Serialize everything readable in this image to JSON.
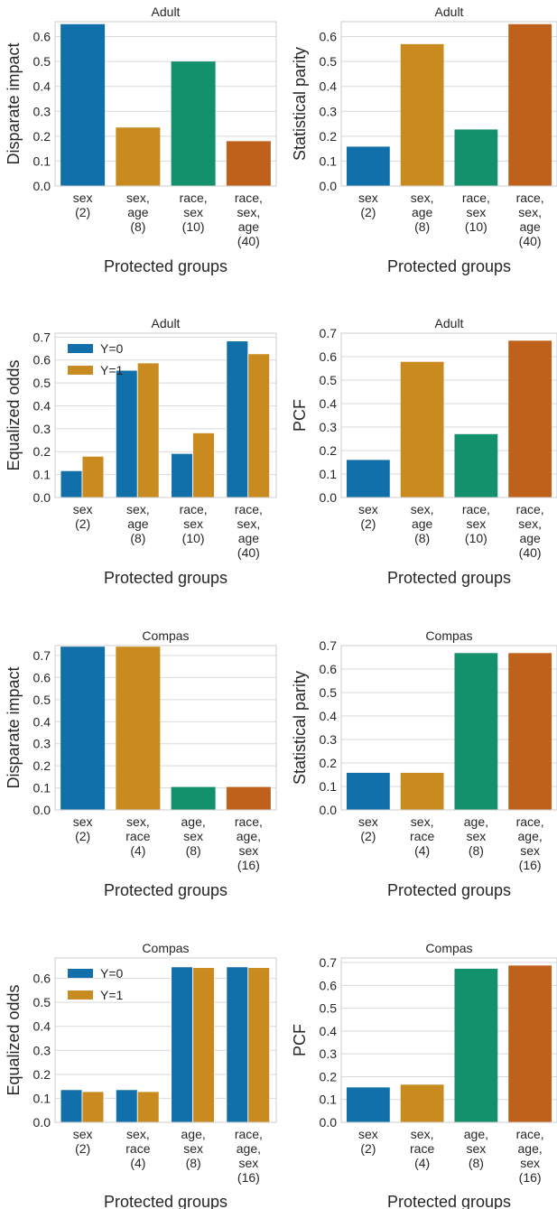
{
  "colors": {
    "blue": "#1170aa",
    "orange": "#c98b1f",
    "green": "#13906c",
    "red": "#c0611b",
    "grid": "#d9d9d9",
    "spine": "#cccccc",
    "text": "#262626"
  },
  "chart_data": [
    {
      "type": "bar",
      "title": "Adult",
      "xlabel": "Protected groups",
      "ylabel": "Disparate impact",
      "categories": [
        [
          "sex",
          "(2)"
        ],
        [
          "sex,",
          "age",
          "(8)"
        ],
        [
          "race,",
          "sex",
          "(10)"
        ],
        [
          "race,",
          "sex,",
          "age",
          "(40)"
        ]
      ],
      "values": [
        0.65,
        0.235,
        0.5,
        0.18
      ],
      "ylim": [
        0,
        0.66
      ],
      "yticks": [
        "0.0",
        "0.1",
        "0.2",
        "0.3",
        "0.4",
        "0.5",
        "0.6"
      ],
      "grid": true
    },
    {
      "type": "bar",
      "title": "Adult",
      "xlabel": "Protected groups",
      "ylabel": "Statistical parity",
      "categories": [
        [
          "sex",
          "(2)"
        ],
        [
          "sex,",
          "age",
          "(8)"
        ],
        [
          "race,",
          "sex",
          "(10)"
        ],
        [
          "race,",
          "sex,",
          "age",
          "(40)"
        ]
      ],
      "values": [
        0.158,
        0.57,
        0.227,
        0.65
      ],
      "ylim": [
        0,
        0.66
      ],
      "yticks": [
        "0.0",
        "0.1",
        "0.2",
        "0.3",
        "0.4",
        "0.5",
        "0.6"
      ],
      "grid": true
    },
    {
      "type": "bar",
      "title": "Adult",
      "xlabel": "Protected groups",
      "ylabel": "Equalized odds",
      "categories": [
        [
          "sex",
          "(2)"
        ],
        [
          "sex,",
          "age",
          "(8)"
        ],
        [
          "race,",
          "sex",
          "(10)"
        ],
        [
          "race,",
          "sex,",
          "age",
          "(40)"
        ]
      ],
      "series": [
        {
          "name": "Y=0",
          "values": [
            0.117,
            0.555,
            0.192,
            0.683
          ]
        },
        {
          "name": "Y=1",
          "values": [
            0.18,
            0.587,
            0.282,
            0.627
          ]
        }
      ],
      "legend": "top-left",
      "ylim": [
        0,
        0.717
      ],
      "yticks": [
        "0.0",
        "0.1",
        "0.2",
        "0.3",
        "0.4",
        "0.5",
        "0.6",
        "0.7"
      ],
      "grid": true
    },
    {
      "type": "bar",
      "title": "Adult",
      "xlabel": "Protected groups",
      "ylabel": "PCF",
      "categories": [
        [
          "sex",
          "(2)"
        ],
        [
          "sex,",
          "age",
          "(8)"
        ],
        [
          "race,",
          "sex",
          "(10)"
        ],
        [
          "race,",
          "sex,",
          "age",
          "(40)"
        ]
      ],
      "values": [
        0.16,
        0.578,
        0.27,
        0.668
      ],
      "ylim": [
        0,
        0.7
      ],
      "yticks": [
        "0.0",
        "0.1",
        "0.2",
        "0.3",
        "0.4",
        "0.5",
        "0.6",
        "0.7"
      ],
      "grid": true
    },
    {
      "type": "bar",
      "title": "Compas",
      "xlabel": "Protected groups",
      "ylabel": "Disparate impact",
      "categories": [
        [
          "sex",
          "(2)"
        ],
        [
          "sex,",
          "race",
          "(4)"
        ],
        [
          "age,",
          "sex",
          "(8)"
        ],
        [
          "race,",
          "age,",
          "sex",
          "(16)"
        ]
      ],
      "values": [
        0.74,
        0.74,
        0.104,
        0.104
      ],
      "ylim": [
        0,
        0.745
      ],
      "yticks": [
        "0.0",
        "0.1",
        "0.2",
        "0.3",
        "0.4",
        "0.5",
        "0.6",
        "0.7"
      ],
      "grid": true
    },
    {
      "type": "bar",
      "title": "Compas",
      "xlabel": "Protected groups",
      "ylabel": "Statistical parity",
      "categories": [
        [
          "sex",
          "(2)"
        ],
        [
          "sex,",
          "race",
          "(4)"
        ],
        [
          "age,",
          "sex",
          "(8)"
        ],
        [
          "race,",
          "age,",
          "sex",
          "(16)"
        ]
      ],
      "values": [
        0.158,
        0.158,
        0.668,
        0.668
      ],
      "ylim": [
        0,
        0.7
      ],
      "yticks": [
        "0.0",
        "0.1",
        "0.2",
        "0.3",
        "0.4",
        "0.5",
        "0.6",
        "0.7"
      ],
      "grid": true
    },
    {
      "type": "bar",
      "title": "Compas",
      "xlabel": "Protected groups",
      "ylabel": "Equalized odds",
      "categories": [
        [
          "sex",
          "(2)"
        ],
        [
          "sex,",
          "race",
          "(4)"
        ],
        [
          "age,",
          "sex",
          "(8)"
        ],
        [
          "race,",
          "age,",
          "sex",
          "(16)"
        ]
      ],
      "series": [
        {
          "name": "Y=0",
          "values": [
            0.136,
            0.136,
            0.648,
            0.648
          ]
        },
        {
          "name": "Y=1",
          "values": [
            0.128,
            0.128,
            0.645,
            0.645
          ]
        }
      ],
      "legend": "top-left",
      "ylim": [
        0,
        0.685
      ],
      "yticks": [
        "0.0",
        "0.1",
        "0.2",
        "0.3",
        "0.4",
        "0.5",
        "0.6"
      ],
      "grid": true
    },
    {
      "type": "bar",
      "title": "Compas",
      "xlabel": "Protected groups",
      "ylabel": "PCF",
      "categories": [
        [
          "sex",
          "(2)"
        ],
        [
          "sex,",
          "race",
          "(4)"
        ],
        [
          "age,",
          "sex",
          "(8)"
        ],
        [
          "race,",
          "age,",
          "sex",
          "(16)"
        ]
      ],
      "values": [
        0.153,
        0.165,
        0.673,
        0.687
      ],
      "ylim": [
        0,
        0.72
      ],
      "yticks": [
        "0.0",
        "0.1",
        "0.2",
        "0.3",
        "0.4",
        "0.5",
        "0.6",
        "0.7"
      ],
      "grid": true
    }
  ]
}
